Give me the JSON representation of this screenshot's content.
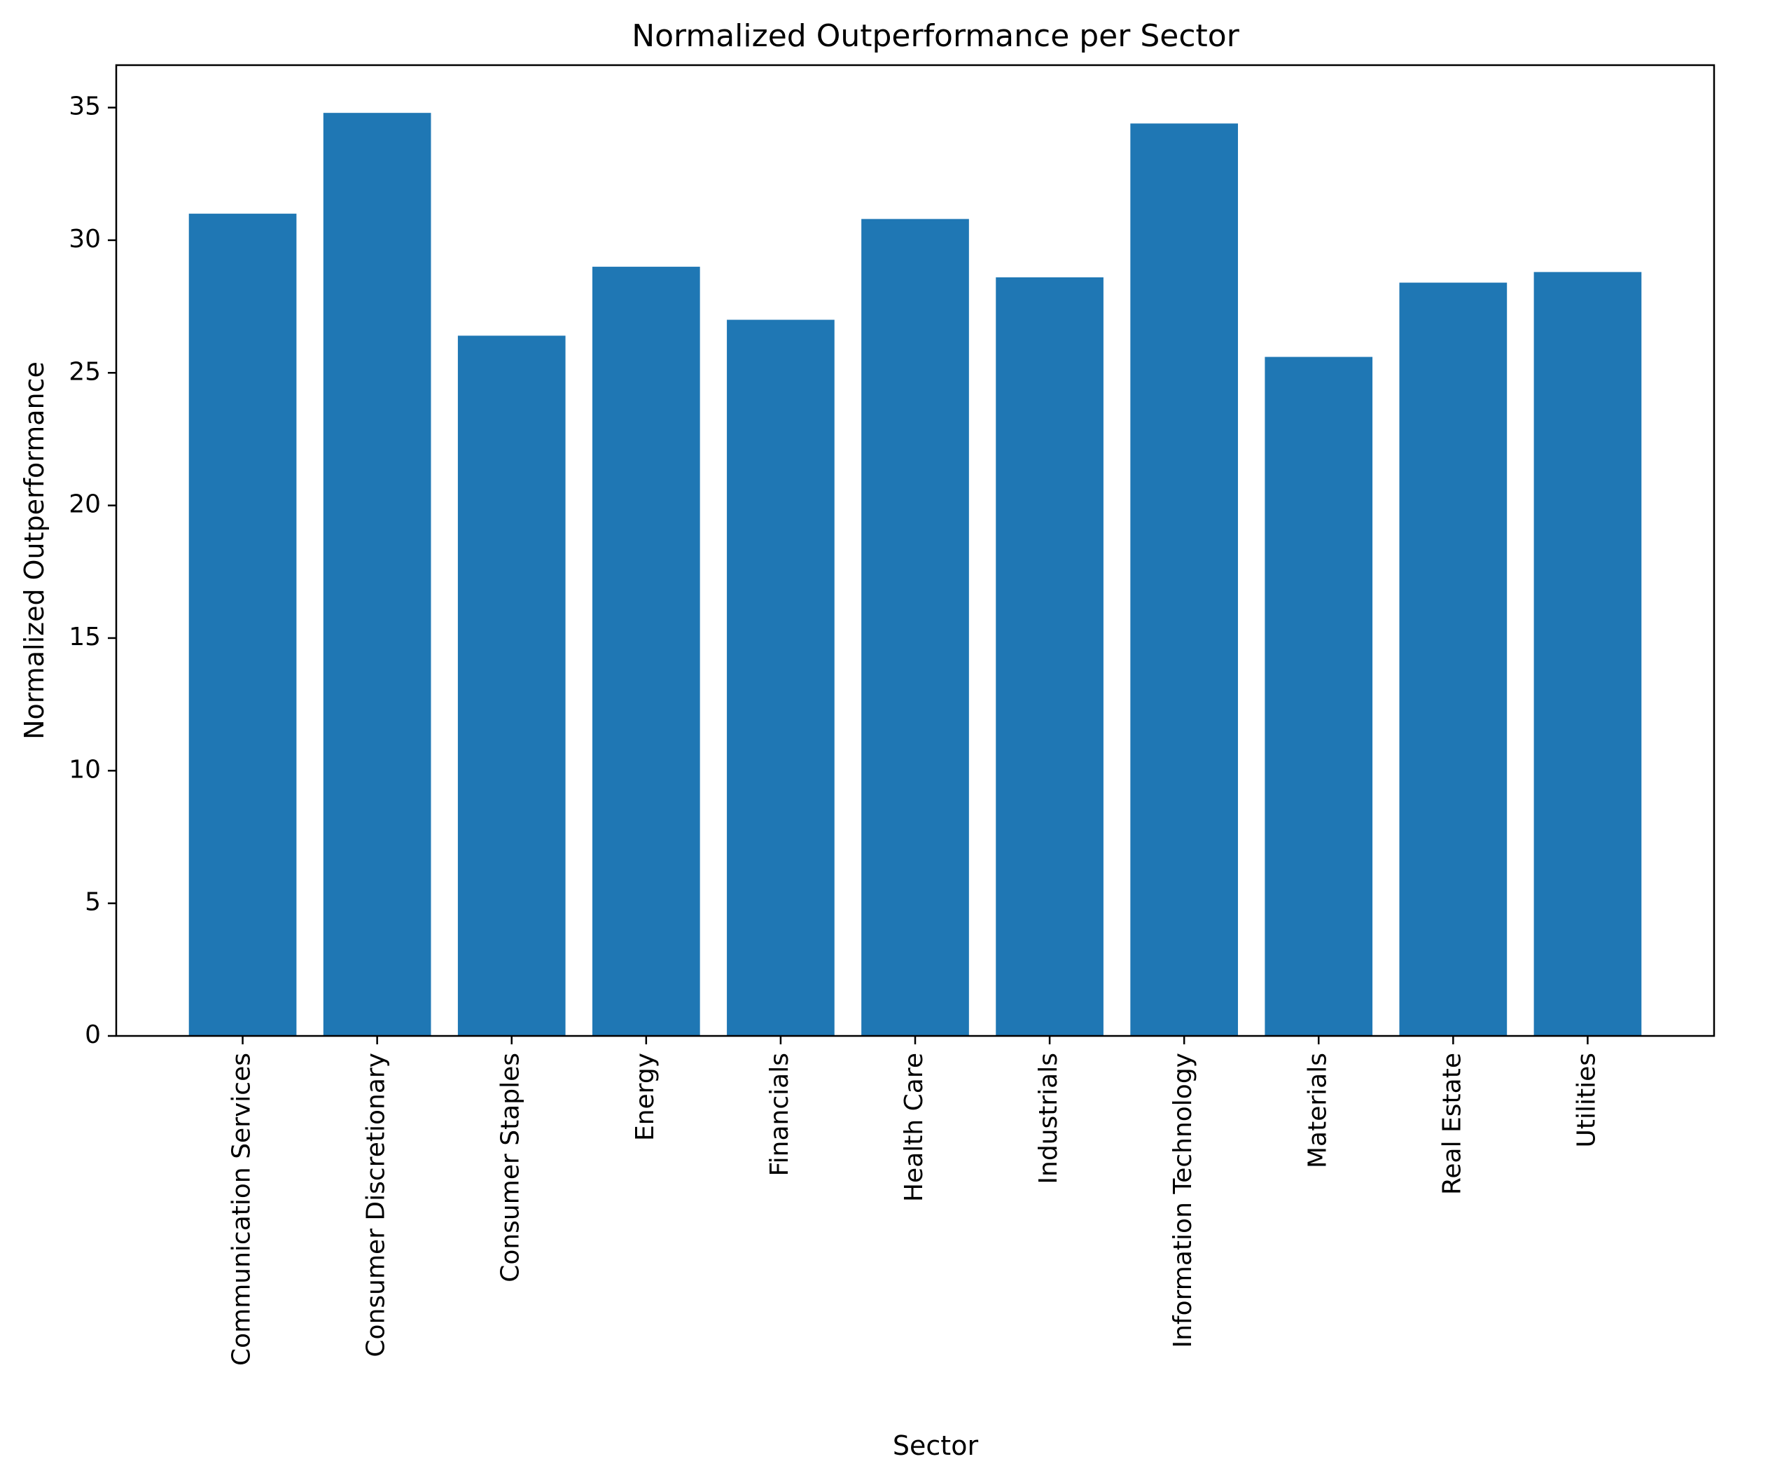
{
  "chart_data": {
    "type": "bar",
    "title": "Normalized Outperformance per Sector",
    "xlabel": "Sector",
    "ylabel": "Normalized Outperformance",
    "categories": [
      "Communication Services",
      "Consumer Discretionary",
      "Consumer Staples",
      "Energy",
      "Financials",
      "Health Care",
      "Industrials",
      "Information Technology",
      "Materials",
      "Real Estate",
      "Utilities"
    ],
    "values": [
      31.0,
      34.8,
      26.4,
      29.0,
      27.0,
      30.8,
      28.6,
      34.4,
      25.6,
      28.4,
      28.8
    ],
    "ylim": [
      0,
      36.6
    ],
    "yticks": [
      0,
      5,
      10,
      15,
      20,
      25,
      30,
      35
    ],
    "grid": false,
    "bar_color": "#1f77b4"
  }
}
